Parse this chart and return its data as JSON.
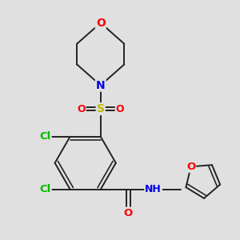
{
  "bg_color": "#e0e0e0",
  "bond_color": "#222222",
  "bond_width": 1.4,
  "atom_colors": {
    "O": "#ff0000",
    "N": "#0000ee",
    "S": "#bbbb00",
    "Cl": "#00bb00",
    "H": "#666666",
    "C": "#222222"
  }
}
